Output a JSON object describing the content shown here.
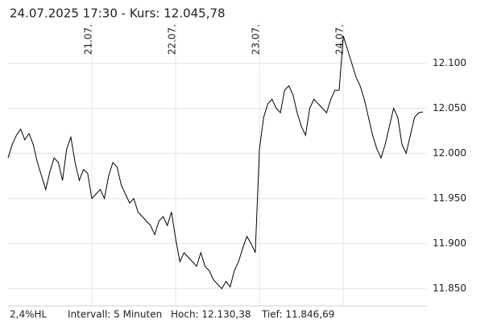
{
  "header": {
    "title": "24.07.2025  17:30  - Kurs: 12.045,78"
  },
  "chart_data": {
    "type": "line",
    "categories": [
      null,
      null,
      null,
      null,
      null,
      null,
      null,
      null,
      null,
      null,
      null,
      null,
      null,
      null,
      null,
      null,
      null,
      null,
      null,
      null,
      "21.07.",
      null,
      null,
      null,
      null,
      null,
      null,
      null,
      null,
      null,
      null,
      null,
      null,
      null,
      null,
      null,
      null,
      null,
      null,
      null,
      "22.07.",
      null,
      null,
      null,
      null,
      null,
      null,
      null,
      null,
      null,
      null,
      null,
      null,
      null,
      null,
      null,
      null,
      null,
      null,
      null,
      "23.07.",
      null,
      null,
      null,
      null,
      null,
      null,
      null,
      null,
      null,
      null,
      null,
      null,
      null,
      null,
      null,
      null,
      null,
      null,
      null,
      "24.07.",
      null,
      null,
      null,
      null,
      null,
      null,
      null,
      null,
      null,
      null,
      null,
      null,
      null,
      null,
      null,
      null,
      null,
      null,
      null
    ],
    "series": [
      {
        "color": "#000000",
        "values": [
          11995,
          12010,
          12020,
          12027,
          12015,
          12022,
          12010,
          11990,
          11975,
          11960,
          11980,
          11995,
          11990,
          11970,
          12005,
          12018,
          11990,
          11970,
          11982,
          11978,
          11950,
          11955,
          11960,
          11950,
          11975,
          11990,
          11985,
          11965,
          11955,
          11945,
          11950,
          11935,
          11930,
          11925,
          11920,
          11910,
          11925,
          11930,
          11920,
          11935,
          11905,
          11880,
          11890,
          11885,
          11880,
          11875,
          11890,
          11875,
          11870,
          11860,
          11855,
          11850,
          11858,
          11852,
          11870,
          11880,
          11895,
          11908,
          11900,
          11890,
          12005,
          12040,
          12055,
          12060,
          12050,
          12045,
          12070,
          12075,
          12065,
          12045,
          12030,
          12020,
          12050,
          12060,
          12055,
          12050,
          12045,
          12060,
          12070,
          12070,
          12130,
          12115,
          12100,
          12085,
          12075,
          12060,
          12040,
          12020,
          12005,
          11995,
          12010,
          12030,
          12050,
          12040,
          12010,
          12000,
          12020,
          12040,
          12045,
          12046
        ]
      }
    ],
    "ylim": [
      11831,
      12145
    ],
    "yticks": [
      {
        "value": 11850,
        "label": "11.850"
      },
      {
        "value": 11900,
        "label": "11.900"
      },
      {
        "value": 11950,
        "label": "11.950"
      },
      {
        "value": 12000,
        "label": "12.000"
      },
      {
        "value": 12050,
        "label": "12.050"
      },
      {
        "value": 12100,
        "label": "12.100"
      }
    ],
    "grid": true
  },
  "footer": {
    "range": "2,4%HL",
    "interval": "Intervall: 5 Minuten",
    "high": "Hoch: 12.130,38",
    "low": "Tief: 11.846,69"
  }
}
